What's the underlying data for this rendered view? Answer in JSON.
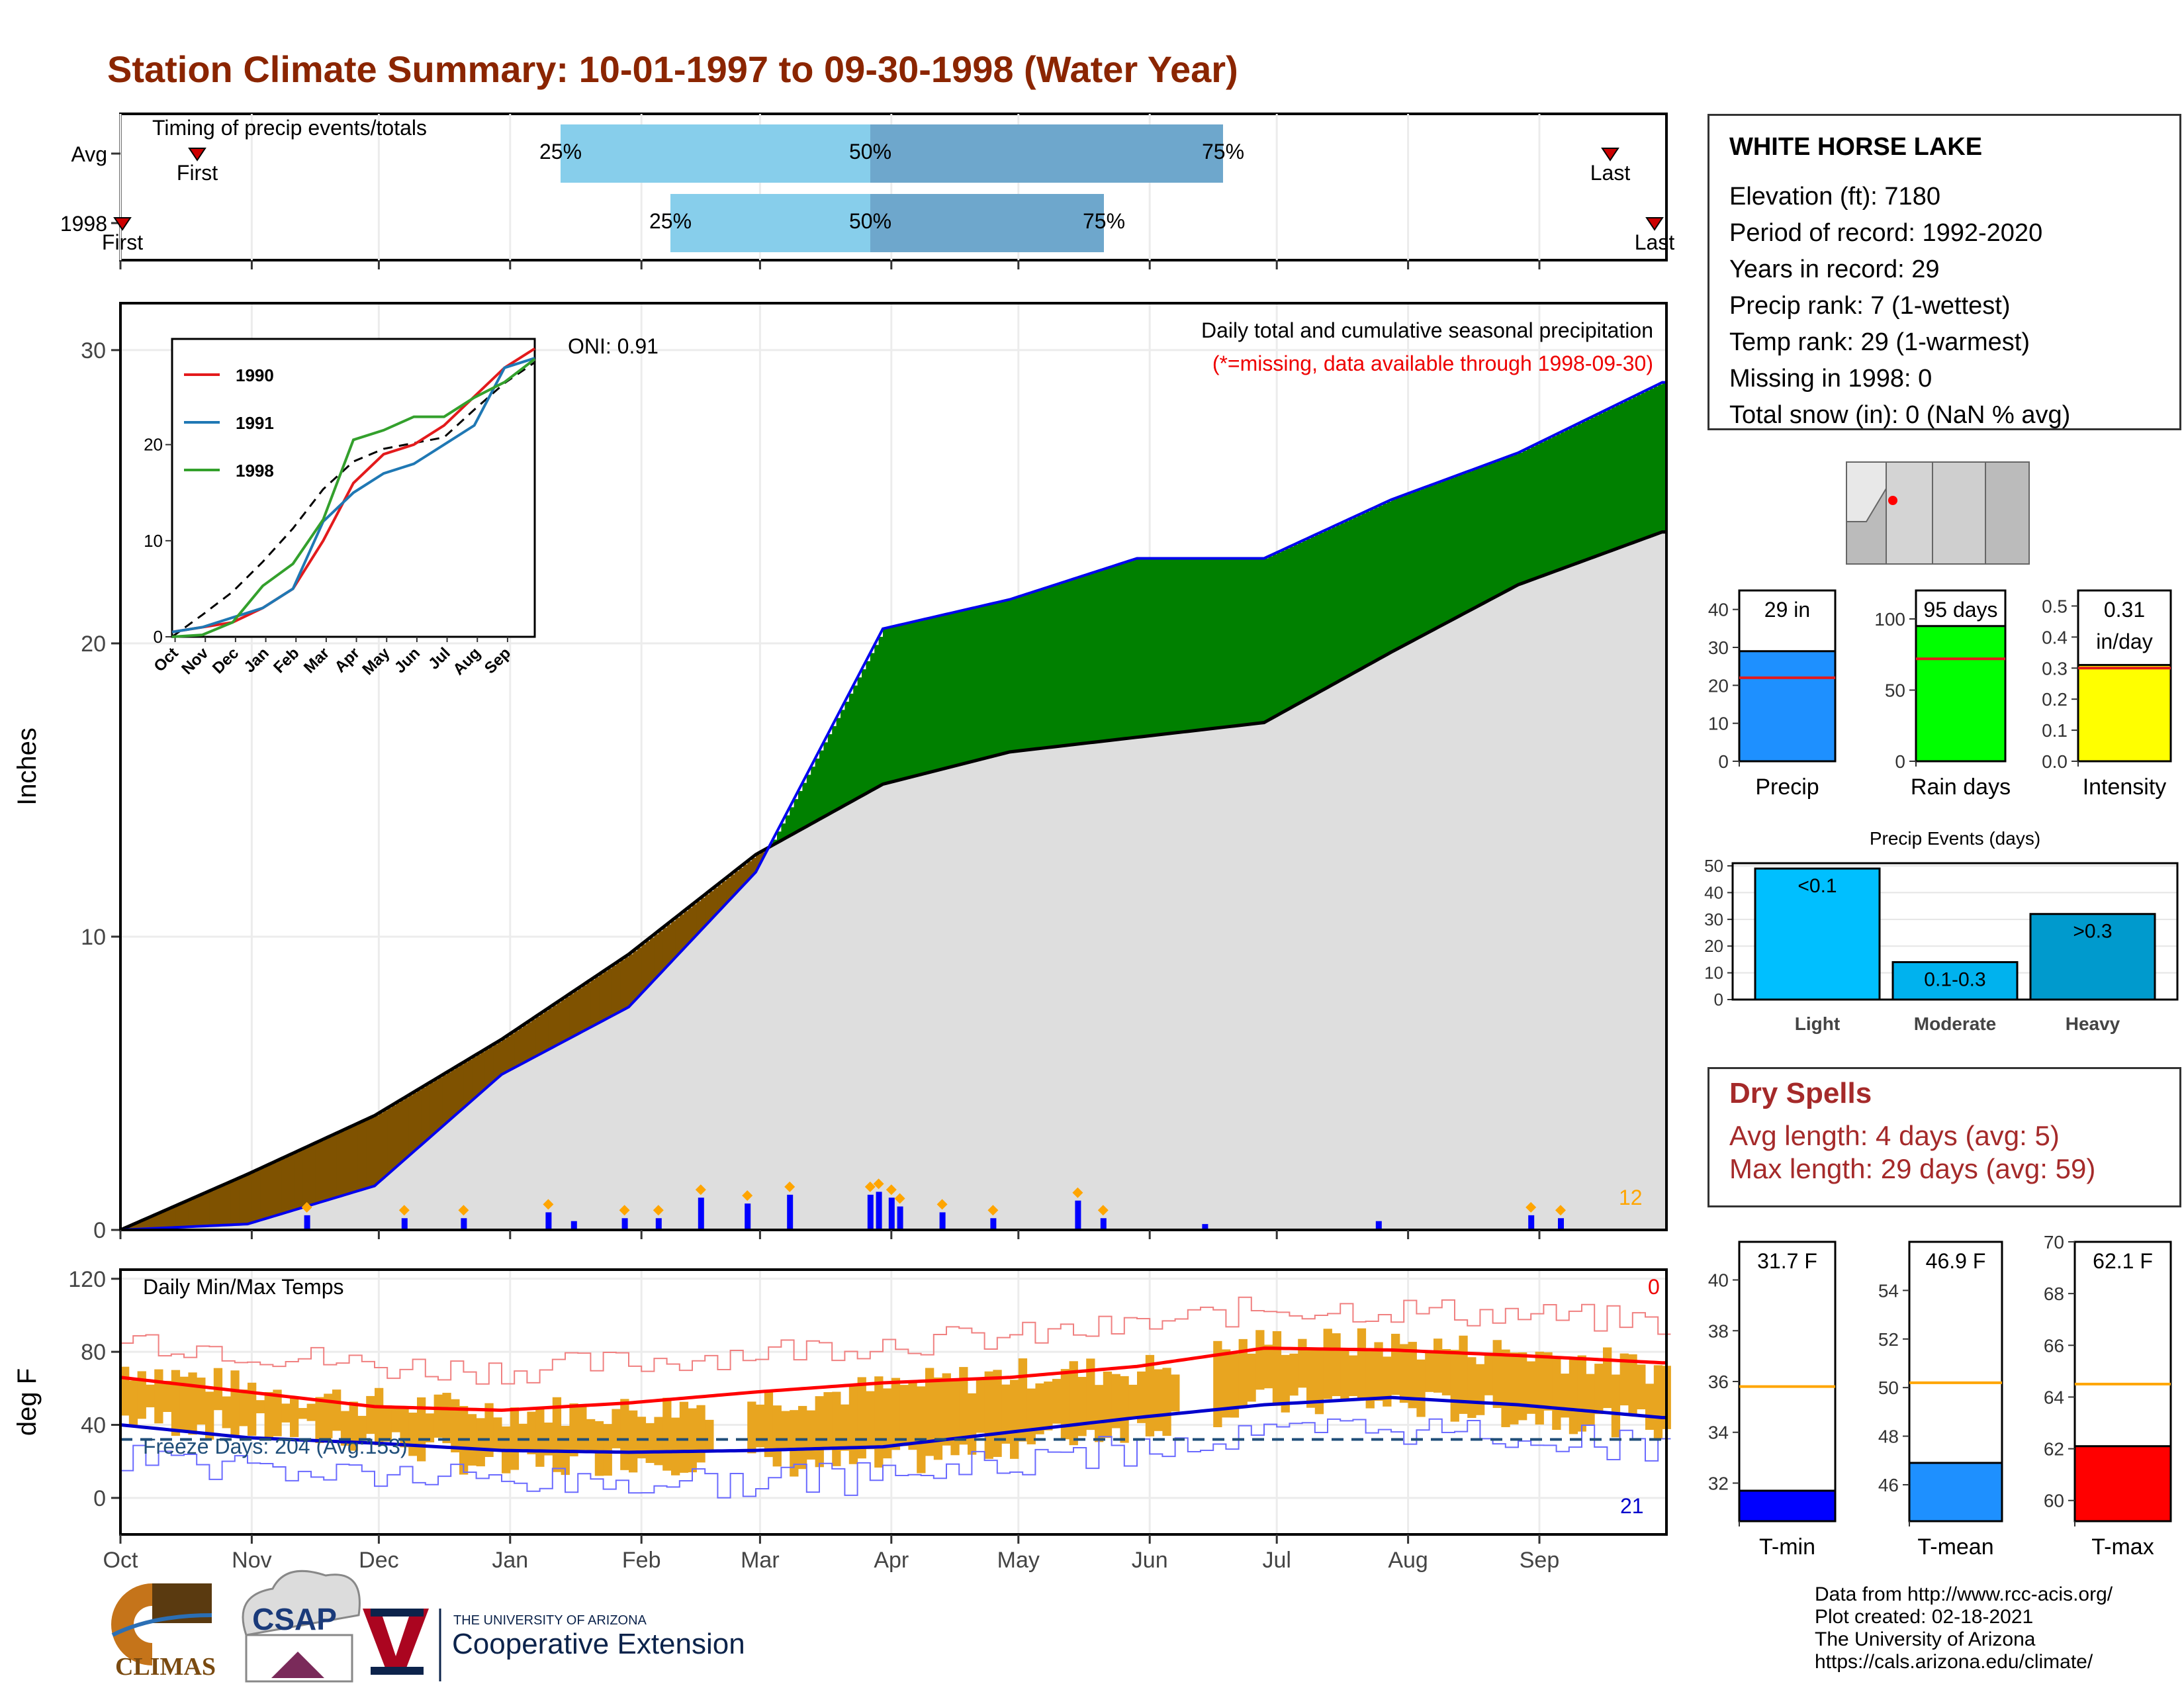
{
  "title": "Station Climate Summary: 10-01-1997 to 09-30-1998 (Water Year)",
  "station": {
    "name": "WHITE HORSE LAKE",
    "rows": [
      "Elevation (ft): 7180",
      "Period of record: 1992-2020",
      "Years in record: 29",
      "Precip rank: 7 (1-wettest)",
      "Temp rank: 29 (1-warmest)",
      "Missing in 1998: 0",
      "Total snow (in): 0 (NaN % avg)"
    ]
  },
  "dry_spells": {
    "title": "Dry Spells",
    "avg": "Avg length: 4 days (avg: 5)",
    "max": "Max length: 29 days (avg: 59)"
  },
  "credits": [
    "Data from http://www.rcc-acis.org/",
    "Plot created: 02-18-2021",
    "The University of Arizona",
    "https://cals.arizona.edu/climate/"
  ],
  "logos": {
    "climas": "CLIMAS",
    "csap": "CSAP",
    "ua_small": "THE UNIVERSITY OF ARIZONA",
    "ua_big": "Cooperative Extension"
  },
  "colors": {
    "title": "#8b2500",
    "deficit": "#7f5200",
    "surplus": "#008000",
    "normal": "#dedede",
    "observed_line": "#0000ee",
    "precip_bar": "#0000ff",
    "temp_bar": "#e8a520",
    "tmax_line": "#ff0000",
    "tmin_line": "#0000cc"
  },
  "chart_data": [
    {
      "type": "bar",
      "id": "timing",
      "title": "Timing of precip events/totals",
      "rows": [
        {
          "label": "Avg",
          "first": "Nov",
          "last": "Sep",
          "p25": "Jan",
          "p50": "Apr",
          "p75": "Jun"
        },
        {
          "label": "1998",
          "first": "Oct",
          "last": "Sep",
          "p25": "Feb",
          "p50": "Apr",
          "p75": "May"
        }
      ],
      "markers": [
        "First",
        "Last",
        "25%",
        "50%",
        "75%"
      ]
    },
    {
      "type": "area",
      "id": "precip-main",
      "title": "Daily total and cumulative seasonal precipitation",
      "subtitle": "(*=missing, data available through 1998-09-30)",
      "annotation": "ONI: 0.91",
      "ylabel": "Inches",
      "ylim": [
        0,
        31
      ],
      "yticks": [
        0,
        10,
        20,
        30
      ],
      "xticks": [
        "Oct",
        "Nov",
        "Dec",
        "Jan",
        "Feb",
        "Mar",
        "Apr",
        "May",
        "Jun",
        "Jul",
        "Aug",
        "Sep"
      ],
      "corner_label": "12",
      "normal_cumulative": {
        "day": [
          0,
          30,
          60,
          90,
          120,
          150,
          180,
          210,
          240,
          270,
          300,
          330,
          364
        ],
        "value": [
          0,
          1.9,
          3.9,
          6.5,
          9.4,
          12.8,
          15.2,
          16.3,
          16.8,
          17.3,
          19.7,
          22.0,
          23.8
        ]
      },
      "observed_cumulative": {
        "day": [
          0,
          30,
          60,
          90,
          120,
          150,
          180,
          210,
          240,
          270,
          300,
          330,
          364
        ],
        "value": [
          0,
          0.2,
          1.5,
          5.3,
          7.6,
          12.2,
          20.5,
          21.5,
          22.9,
          22.9,
          24.9,
          26.5,
          28.9
        ]
      },
      "daily_precip": [
        {
          "day": 44,
          "value": 0.5
        },
        {
          "day": 67,
          "value": 0.4
        },
        {
          "day": 81,
          "value": 0.4
        },
        {
          "day": 101,
          "value": 0.6
        },
        {
          "day": 107,
          "value": 0.3
        },
        {
          "day": 119,
          "value": 0.4
        },
        {
          "day": 127,
          "value": 0.4
        },
        {
          "day": 137,
          "value": 1.1
        },
        {
          "day": 148,
          "value": 0.9
        },
        {
          "day": 158,
          "value": 1.2
        },
        {
          "day": 177,
          "value": 1.2
        },
        {
          "day": 179,
          "value": 1.3
        },
        {
          "day": 182,
          "value": 1.1
        },
        {
          "day": 184,
          "value": 0.8
        },
        {
          "day": 194,
          "value": 0.6
        },
        {
          "day": 206,
          "value": 0.4
        },
        {
          "day": 226,
          "value": 1.0
        },
        {
          "day": 232,
          "value": 0.4
        },
        {
          "day": 256,
          "value": 0.2
        },
        {
          "day": 297,
          "value": 0.3
        },
        {
          "day": 333,
          "value": 0.5
        },
        {
          "day": 340,
          "value": 0.4
        }
      ]
    },
    {
      "type": "line",
      "id": "precip-inset",
      "xticks": [
        "Oct",
        "Nov",
        "Dec",
        "Jan",
        "Feb",
        "Mar",
        "Apr",
        "May",
        "Jun",
        "Jul",
        "Aug",
        "Sep"
      ],
      "yticks": [
        0,
        10,
        20
      ],
      "ylim": [
        0,
        31
      ],
      "series": [
        {
          "name": "1990",
          "values": [
            0.5,
            1,
            1.5,
            3,
            5,
            10,
            16,
            19,
            20,
            22,
            25,
            28,
            30
          ]
        },
        {
          "name": "1991",
          "values": [
            0.5,
            1,
            2,
            3,
            5,
            12,
            15,
            17,
            18,
            20,
            22,
            28,
            29
          ]
        },
        {
          "name": "1998",
          "values": [
            0,
            0.2,
            1.5,
            5.3,
            7.6,
            12.2,
            20.5,
            21.5,
            22.9,
            22.9,
            24.9,
            26.5,
            28.9
          ]
        }
      ]
    },
    {
      "type": "line",
      "id": "temps",
      "title": "Daily Min/Max Temps",
      "ylabel": "deg F",
      "ylim": [
        -20,
        125
      ],
      "yticks": [
        0,
        40,
        80,
        120
      ],
      "xticks": [
        "Oct",
        "Nov",
        "Dec",
        "Jan",
        "Feb",
        "Mar",
        "Apr",
        "May",
        "Jun",
        "Jul",
        "Aug",
        "Sep"
      ],
      "freeze_label": "Freeze Days: 204 (Avg:153)",
      "freeze_line": 32,
      "top_label": "0",
      "bottom_label": "21",
      "avg_tmax": {
        "day": [
          0,
          30,
          60,
          90,
          120,
          150,
          180,
          210,
          240,
          270,
          300,
          330,
          364
        ],
        "value": [
          66,
          58,
          50,
          48,
          52,
          58,
          63,
          66,
          72,
          82,
          81,
          78,
          74
        ]
      },
      "avg_tmin": {
        "day": [
          0,
          30,
          60,
          90,
          120,
          150,
          180,
          210,
          240,
          270,
          300,
          330,
          364
        ],
        "value": [
          40,
          33,
          30,
          26,
          25,
          26,
          28,
          36,
          44,
          51,
          55,
          51,
          44
        ]
      },
      "obs_band_top": {
        "day": [
          0,
          30,
          60,
          90,
          120,
          150,
          180,
          210,
          240,
          270,
          300,
          330,
          364
        ],
        "value": [
          72,
          60,
          52,
          48,
          48,
          54,
          60,
          68,
          70,
          86,
          84,
          80,
          70
        ]
      },
      "obs_band_bottom": {
        "day": [
          0,
          30,
          60,
          90,
          120,
          150,
          180,
          210,
          240,
          270,
          300,
          330,
          364
        ],
        "value": [
          44,
          38,
          32,
          16,
          22,
          20,
          18,
          30,
          40,
          52,
          52,
          46,
          40
        ]
      }
    },
    {
      "type": "bar",
      "id": "precip-total",
      "xlabel": "Precip",
      "ylim": [
        0,
        45
      ],
      "yticks": [
        0,
        10,
        20,
        30,
        40
      ],
      "value": 29,
      "avg": 22,
      "value_label": "29 in"
    },
    {
      "type": "bar",
      "id": "rain-days",
      "xlabel": "Rain days",
      "ylim": [
        0,
        120
      ],
      "yticks": [
        0,
        50,
        100
      ],
      "value": 95,
      "avg": 72,
      "value_label": "95 days"
    },
    {
      "type": "bar",
      "id": "intensity",
      "xlabel": "Intensity",
      "ylim": [
        0,
        0.55
      ],
      "yticks": [
        0.0,
        0.1,
        0.2,
        0.3,
        0.4,
        0.5
      ],
      "value": 0.31,
      "avg": 0.3,
      "value_label": [
        "0.31",
        "in/day"
      ]
    },
    {
      "type": "bar",
      "id": "precip-events",
      "title": "Precip Events (days)",
      "categories": [
        "Light",
        "Moderate",
        "Heavy"
      ],
      "values": [
        49,
        14,
        32
      ],
      "bar_labels": [
        "<0.1",
        "0.1-0.3",
        ">0.3"
      ],
      "ylim": [
        0,
        50
      ],
      "yticks": [
        0,
        10,
        20,
        30,
        40,
        50
      ]
    },
    {
      "type": "bar",
      "id": "t-min",
      "xlabel": "T-min",
      "ylim": [
        30.5,
        41.5
      ],
      "yticks": [
        32,
        34,
        36,
        38,
        40
      ],
      "value": 31.7,
      "avg": 35.8,
      "value_label": "31.7 F"
    },
    {
      "type": "bar",
      "id": "t-mean",
      "xlabel": "T-mean",
      "ylim": [
        44.5,
        56
      ],
      "yticks": [
        46,
        48,
        50,
        52,
        54
      ],
      "value": 46.9,
      "avg": 50.2,
      "value_label": "46.9 F"
    },
    {
      "type": "bar",
      "id": "t-max",
      "xlabel": "T-max",
      "ylim": [
        59.2,
        70
      ],
      "yticks": [
        60,
        62,
        64,
        66,
        68,
        70
      ],
      "value": 62.1,
      "avg": 64.5,
      "value_label": "62.1 F"
    }
  ]
}
